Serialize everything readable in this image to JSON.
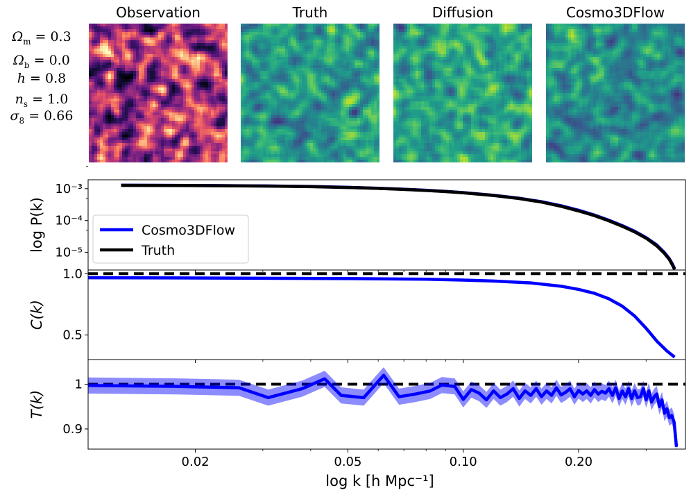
{
  "panels": [
    {
      "title": "Observation",
      "cmap": "magma"
    },
    {
      "title": "Truth",
      "cmap": "viridis"
    },
    {
      "title": "Diffusion",
      "cmap": "viridis"
    },
    {
      "title": "Cosmo3DFlow",
      "cmap": "viridis"
    }
  ],
  "params": [
    {
      "sym": "Ω",
      "sub": "m",
      "val": "= 0.3"
    },
    {
      "sym": "Ω",
      "sub": "b",
      "val": "= 0.0"
    },
    {
      "sym": "h",
      "sub": "",
      "val": "= 0.8"
    },
    {
      "sym": "n",
      "sub": "s",
      "val": "= 1.0"
    },
    {
      "sym": "σ",
      "sub": "8",
      "val": "= 0.66"
    }
  ],
  "chart_data": [
    {
      "type": "line",
      "ylabel": "log P(k)",
      "yscale": "log",
      "ylim": [
        2.8e-06,
        0.0019
      ],
      "yticks": [
        "10⁻³",
        "10⁻⁴",
        "10⁻⁵"
      ],
      "ytick_values": [
        0.001,
        0.0001,
        1e-05
      ],
      "legend": {
        "placement": "center-left",
        "entries": [
          "Cosmo3DFlow",
          "Truth"
        ]
      },
      "series": [
        {
          "name": "Cosmo3DFlow",
          "color": "#0000ff",
          "x": [
            0.0128,
            0.02,
            0.03,
            0.04,
            0.05,
            0.06,
            0.07,
            0.08,
            0.09,
            0.1,
            0.12,
            0.14,
            0.16,
            0.18,
            0.2,
            0.22,
            0.24,
            0.26,
            0.28,
            0.3,
            0.32,
            0.335,
            0.345,
            0.352,
            0.356
          ],
          "y": [
            0.00128,
            0.00126,
            0.00122,
            0.00117,
            0.0011,
            0.00103,
            0.00096,
            0.00089,
            0.00082,
            0.00075,
            0.00062,
            0.0005,
            0.00039,
            0.00029,
            0.00021,
            0.000148,
            0.000102,
            6.9e-05,
            4.6e-05,
            2.9e-05,
            1.7e-05,
            9.8e-06,
            6.3e-06,
            4.1e-06,
            3.1e-06
          ]
        },
        {
          "name": "Truth",
          "color": "#000000",
          "x": [
            0.0128,
            0.02,
            0.03,
            0.04,
            0.05,
            0.06,
            0.07,
            0.08,
            0.09,
            0.1,
            0.12,
            0.14,
            0.16,
            0.18,
            0.2,
            0.22,
            0.24,
            0.26,
            0.28,
            0.3,
            0.32,
            0.335,
            0.345,
            0.352,
            0.356
          ],
          "y": [
            0.00127,
            0.00125,
            0.00121,
            0.00116,
            0.00109,
            0.00102,
            0.00095,
            0.00088,
            0.00081,
            0.00074,
            0.00061,
            0.00049,
            0.00038,
            0.00028,
            0.0002,
            0.000143,
            9.8e-05,
            6.6e-05,
            4.4e-05,
            2.8e-05,
            1.6e-05,
            9.3e-06,
            6e-06,
            3.9e-06,
            2.9e-06
          ]
        }
      ]
    },
    {
      "type": "line",
      "ylabel": "C(k)",
      "ylim": [
        0.3,
        1.03
      ],
      "yticks": [
        "1.0",
        "0.5"
      ],
      "ytick_values": [
        1.0,
        0.5
      ],
      "reference_line": 1.0,
      "series": [
        {
          "name": "",
          "color": "#0000ff",
          "x": [
            0.0105,
            0.02,
            0.03,
            0.05,
            0.08,
            0.1,
            0.12,
            0.15,
            0.18,
            0.2,
            0.22,
            0.24,
            0.26,
            0.28,
            0.3,
            0.32,
            0.34,
            0.356
          ],
          "y": [
            0.967,
            0.965,
            0.963,
            0.96,
            0.955,
            0.948,
            0.94,
            0.925,
            0.898,
            0.872,
            0.84,
            0.795,
            0.735,
            0.655,
            0.555,
            0.45,
            0.37,
            0.32
          ],
          "band": 0.008
        }
      ]
    },
    {
      "type": "line",
      "ylabel": "T(k)",
      "ylim": [
        0.855,
        1.055
      ],
      "yticks": [
        "1",
        "0.9"
      ],
      "ytick_values": [
        1.0,
        0.9
      ],
      "reference_line": 1.0,
      "xlabel": "log k [h Mpc⁻¹]",
      "xscale": "log",
      "xlim": [
        0.0105,
        0.38
      ],
      "xticks": [
        "0.02",
        "0.05",
        "0.10",
        "0.20"
      ],
      "xtick_values": [
        0.02,
        0.05,
        0.1,
        0.2
      ],
      "series": [
        {
          "name": "",
          "color": "#0000ff",
          "x": [
            0.0105,
            0.018,
            0.026,
            0.031,
            0.038,
            0.0435,
            0.048,
            0.055,
            0.062,
            0.068,
            0.075,
            0.082,
            0.088,
            0.095,
            0.1,
            0.105,
            0.11,
            0.115,
            0.12,
            0.125,
            0.13,
            0.135,
            0.14,
            0.145,
            0.15,
            0.155,
            0.16,
            0.165,
            0.17,
            0.175,
            0.18,
            0.185,
            0.19,
            0.195,
            0.2,
            0.205,
            0.21,
            0.215,
            0.22,
            0.225,
            0.23,
            0.235,
            0.24,
            0.245,
            0.25,
            0.255,
            0.26,
            0.265,
            0.27,
            0.275,
            0.28,
            0.285,
            0.29,
            0.295,
            0.3,
            0.305,
            0.31,
            0.315,
            0.32,
            0.325,
            0.33,
            0.335,
            0.34,
            0.345,
            0.35,
            0.355,
            0.36
          ],
          "y": [
            0.997,
            0.995,
            0.992,
            0.97,
            0.99,
            1.012,
            0.975,
            0.97,
            1.02,
            0.972,
            0.978,
            0.985,
            0.998,
            0.995,
            0.966,
            0.988,
            0.98,
            0.965,
            0.985,
            0.97,
            0.978,
            0.99,
            0.968,
            0.985,
            0.975,
            0.99,
            0.972,
            0.985,
            0.975,
            0.992,
            0.976,
            0.982,
            0.99,
            0.972,
            0.986,
            0.978,
            0.985,
            0.975,
            0.988,
            0.978,
            0.984,
            0.98,
            0.99,
            0.975,
            0.992,
            0.968,
            0.985,
            0.972,
            0.99,
            0.968,
            0.985,
            0.97,
            0.972,
            0.99,
            0.965,
            0.985,
            0.96,
            0.972,
            0.978,
            0.95,
            0.965,
            0.935,
            0.945,
            0.925,
            0.93,
            0.915,
            0.86
          ],
          "band": 0.018
        }
      ]
    }
  ]
}
